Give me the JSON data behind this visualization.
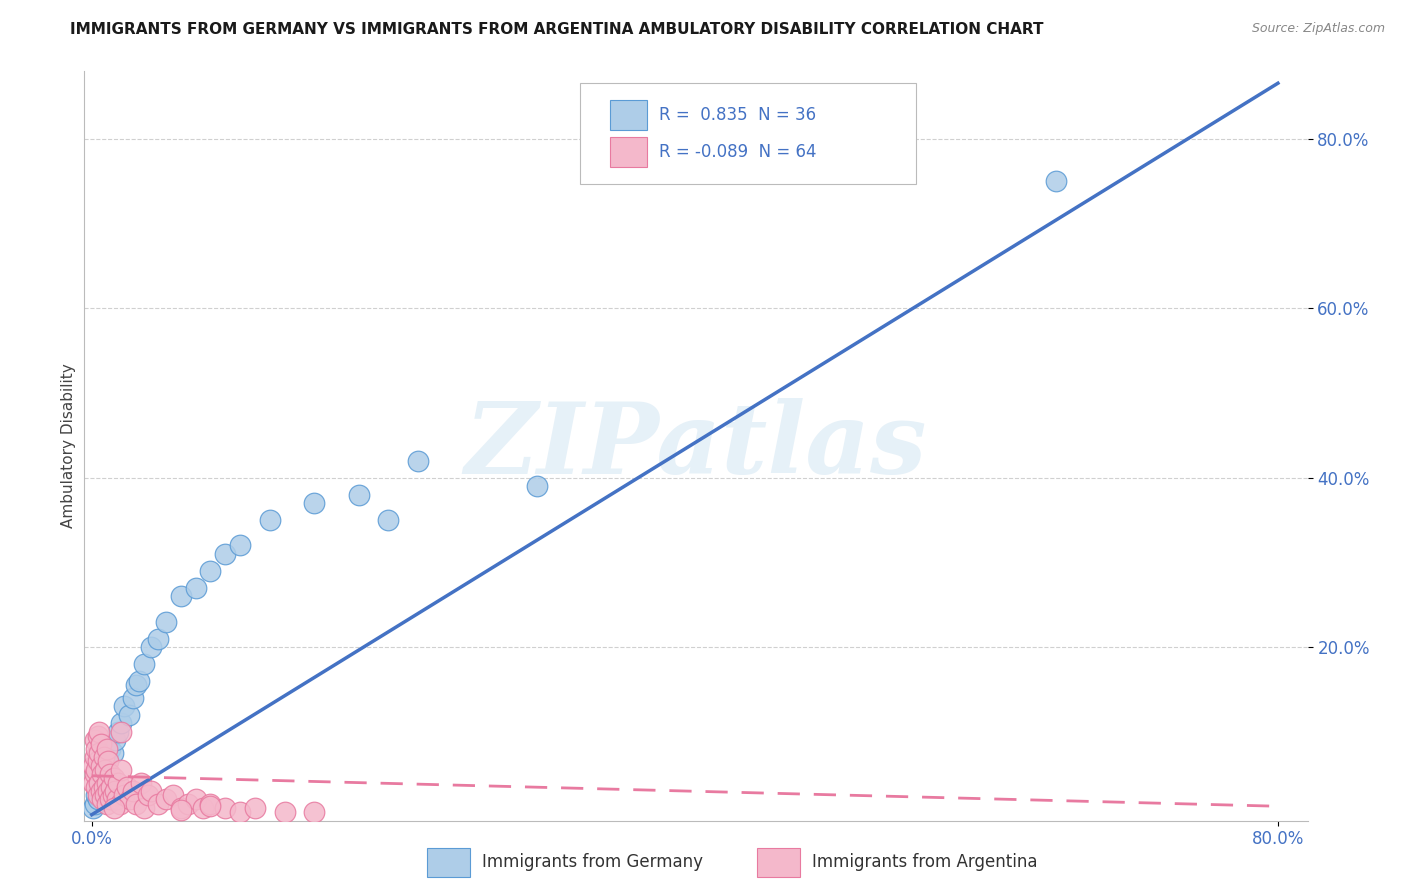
{
  "title": "IMMIGRANTS FROM GERMANY VS IMMIGRANTS FROM ARGENTINA AMBULATORY DISABILITY CORRELATION CHART",
  "source": "Source: ZipAtlas.com",
  "ylabel": "Ambulatory Disability",
  "ytick_labels": [
    "20.0%",
    "40.0%",
    "60.0%",
    "80.0%"
  ],
  "ytick_vals": [
    0.2,
    0.4,
    0.6,
    0.8
  ],
  "xtick_labels": [
    "0.0%",
    "80.0%"
  ],
  "xtick_vals": [
    0.0,
    0.8
  ],
  "R_germany": 0.835,
  "N_germany": 36,
  "R_argentina": -0.089,
  "N_argentina": 64,
  "color_germany_fill": "#aecde8",
  "color_germany_edge": "#5b9bd5",
  "color_argentina_fill": "#f4b8cb",
  "color_argentina_edge": "#e87aa0",
  "line_germany_color": "#4472c4",
  "line_argentina_color": "#e87aa0",
  "watermark": "ZIPatlas",
  "background": "#ffffff",
  "grid_color": "#d0d0d0",
  "legend_germany": "Immigrants from Germany",
  "legend_argentina": "Immigrants from Argentina",
  "title_color": "#1a1a1a",
  "source_color": "#888888",
  "tick_color": "#4472c4",
  "ylabel_color": "#444444",
  "germany_x": [
    0.001,
    0.002,
    0.003,
    0.004,
    0.005,
    0.006,
    0.007,
    0.008,
    0.009,
    0.01,
    0.012,
    0.014,
    0.016,
    0.018,
    0.02,
    0.022,
    0.025,
    0.028,
    0.03,
    0.032,
    0.035,
    0.04,
    0.045,
    0.05,
    0.06,
    0.07,
    0.08,
    0.09,
    0.1,
    0.12,
    0.15,
    0.18,
    0.2,
    0.22,
    0.3,
    0.65
  ],
  "germany_y": [
    0.01,
    0.015,
    0.025,
    0.02,
    0.04,
    0.03,
    0.055,
    0.045,
    0.06,
    0.07,
    0.08,
    0.075,
    0.09,
    0.1,
    0.11,
    0.13,
    0.12,
    0.14,
    0.155,
    0.16,
    0.18,
    0.2,
    0.21,
    0.23,
    0.26,
    0.27,
    0.29,
    0.31,
    0.32,
    0.35,
    0.37,
    0.38,
    0.35,
    0.42,
    0.39,
    0.75
  ],
  "argentina_x": [
    0.001,
    0.001,
    0.002,
    0.002,
    0.002,
    0.003,
    0.003,
    0.003,
    0.004,
    0.004,
    0.004,
    0.005,
    0.005,
    0.005,
    0.006,
    0.006,
    0.006,
    0.007,
    0.007,
    0.008,
    0.008,
    0.009,
    0.009,
    0.01,
    0.01,
    0.01,
    0.011,
    0.011,
    0.012,
    0.012,
    0.013,
    0.014,
    0.015,
    0.016,
    0.017,
    0.018,
    0.019,
    0.02,
    0.022,
    0.024,
    0.026,
    0.028,
    0.03,
    0.033,
    0.035,
    0.038,
    0.04,
    0.045,
    0.05,
    0.055,
    0.06,
    0.065,
    0.07,
    0.075,
    0.08,
    0.09,
    0.1,
    0.11,
    0.13,
    0.15,
    0.06,
    0.08,
    0.02,
    0.015
  ],
  "argentina_y": [
    0.04,
    0.06,
    0.05,
    0.07,
    0.09,
    0.035,
    0.055,
    0.08,
    0.025,
    0.065,
    0.095,
    0.04,
    0.075,
    0.1,
    0.03,
    0.06,
    0.085,
    0.02,
    0.05,
    0.035,
    0.07,
    0.025,
    0.055,
    0.015,
    0.04,
    0.08,
    0.03,
    0.065,
    0.02,
    0.05,
    0.035,
    0.025,
    0.045,
    0.03,
    0.02,
    0.04,
    0.015,
    0.055,
    0.025,
    0.035,
    0.02,
    0.03,
    0.015,
    0.04,
    0.01,
    0.025,
    0.03,
    0.015,
    0.02,
    0.025,
    0.01,
    0.015,
    0.02,
    0.01,
    0.015,
    0.01,
    0.005,
    0.01,
    0.005,
    0.005,
    0.008,
    0.012,
    0.1,
    0.01
  ],
  "line_germany_slope": 1.08,
  "line_germany_intercept": 0.002,
  "line_argentina_slope": -0.045,
  "line_argentina_intercept": 0.048
}
